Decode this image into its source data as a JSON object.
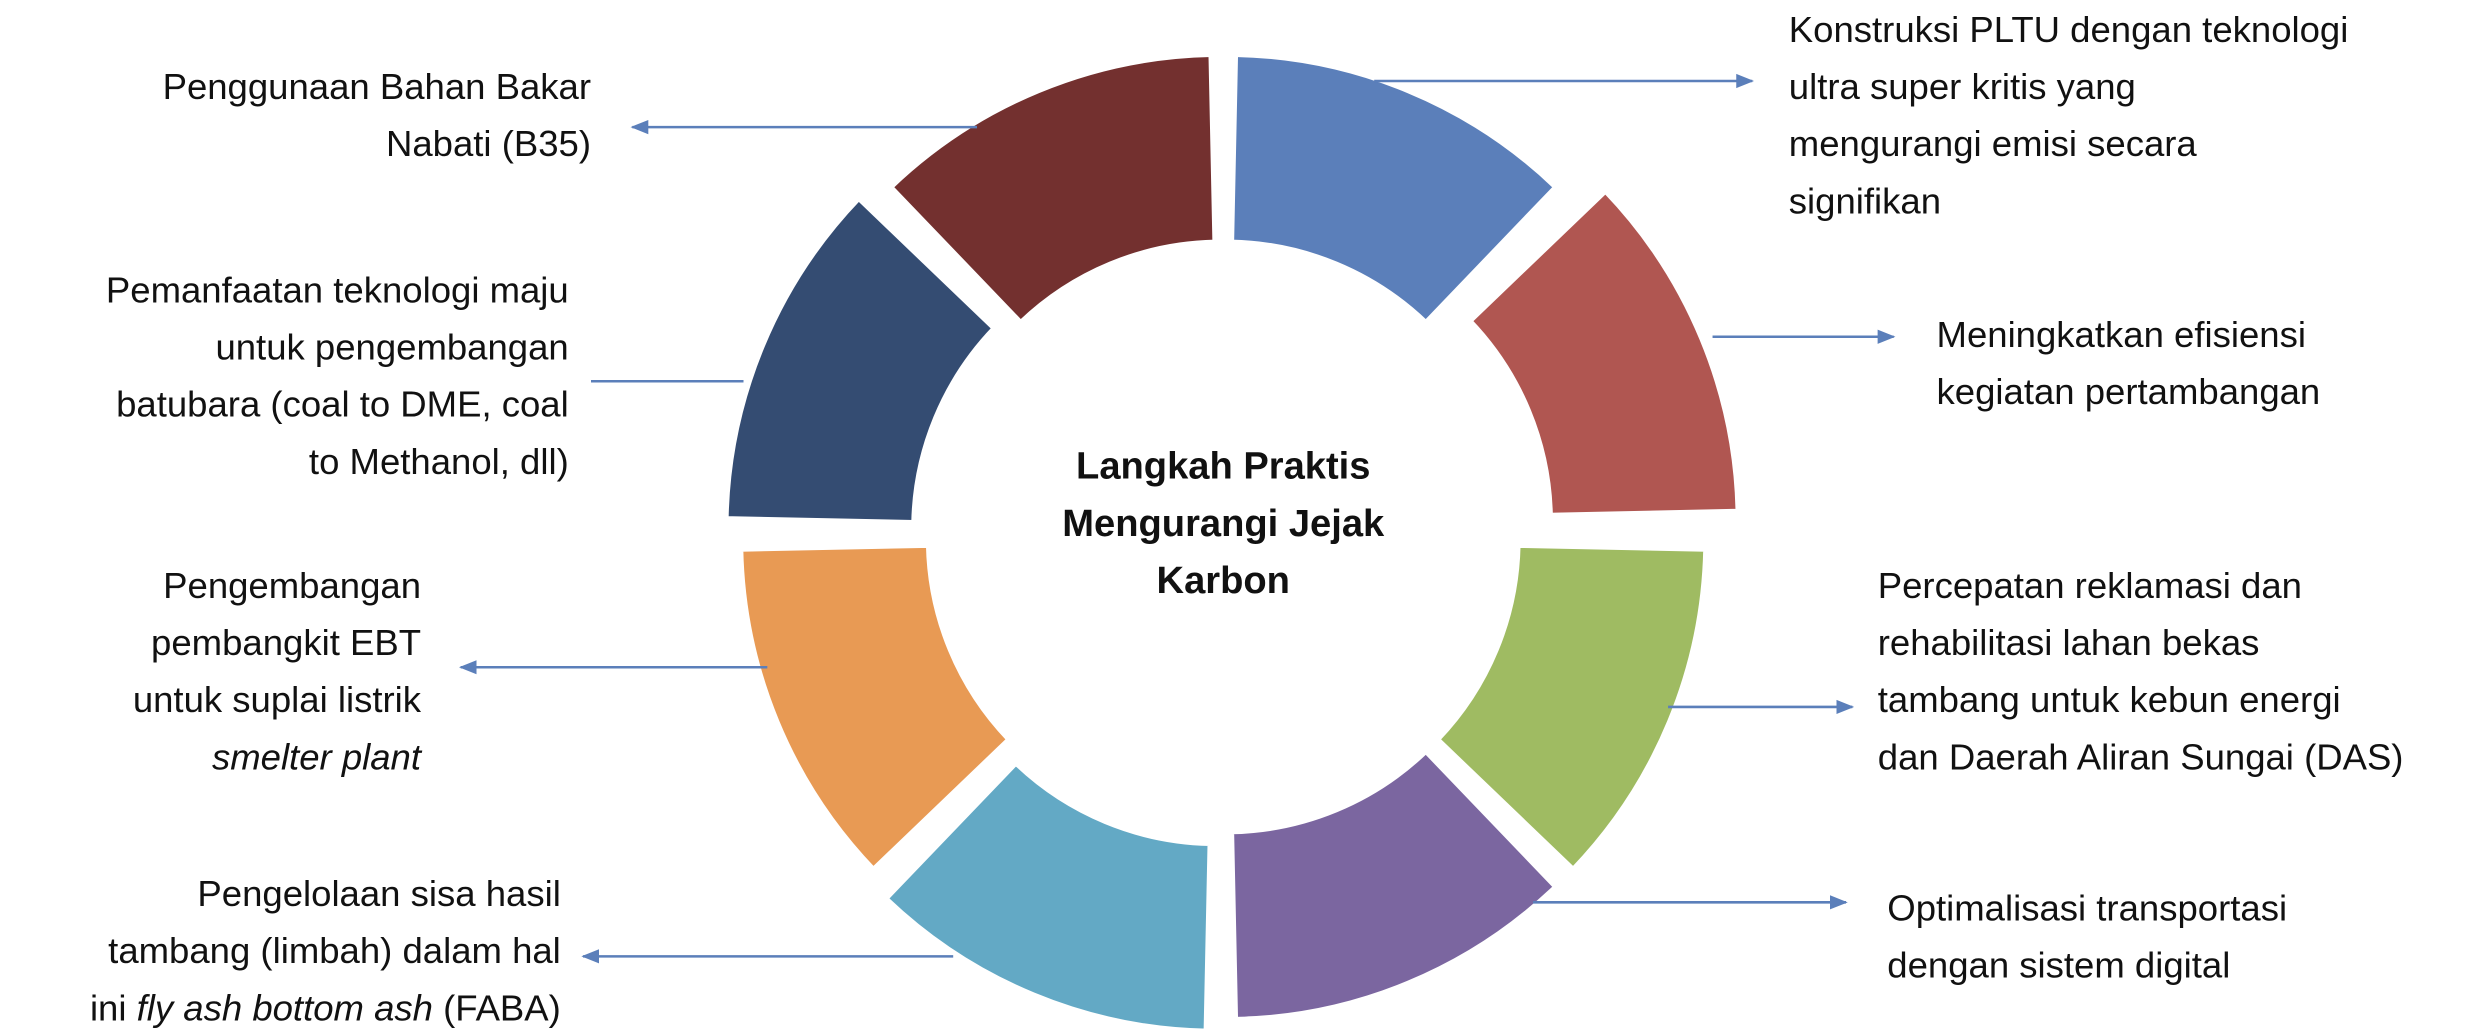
{
  "center": {
    "lines": [
      "Langkah Praktis",
      "Mengurangi Jejak",
      "Karbon"
    ]
  },
  "segments": [
    {
      "color": "#5b7fba"
    },
    {
      "color": "#b05651"
    },
    {
      "color": "#9fbb62"
    },
    {
      "color": "#7b66a0"
    },
    {
      "color": "#63a9c5"
    },
    {
      "color": "#e89a54"
    },
    {
      "color": "#344c72"
    },
    {
      "color": "#73302f"
    }
  ],
  "nodes": [
    {
      "lines": [
        [
          "Konstruksi PLTU dengan teknologi"
        ],
        [
          "ultra super kritis yang"
        ],
        [
          "mengurangi emisi secara"
        ],
        [
          "signifikan"
        ]
      ]
    },
    {
      "lines": [
        [
          "Meningkatkan efisiensi"
        ],
        [
          "kegiatan pertambangan"
        ]
      ]
    },
    {
      "lines": [
        [
          "Percepatan reklamasi dan"
        ],
        [
          "rehabilitasi lahan bekas"
        ],
        [
          "tambang untuk kebun energi"
        ],
        [
          "dan Daerah Aliran Sungai (DAS)"
        ]
      ]
    },
    {
      "lines": [
        [
          "Optimalisasi transportasi"
        ],
        [
          "dengan sistem digital"
        ]
      ]
    },
    {
      "lines": [
        [
          "Pengelolaan sisa hasil"
        ],
        [
          "tambang (limbah) dalam hal"
        ],
        [
          "ini ",
          {
            "text": "fly ash bottom ash",
            "italic": true
          },
          " (FABA)"
        ]
      ]
    },
    {
      "lines": [
        [
          "Pengembangan"
        ],
        [
          "pembangkit EBT"
        ],
        [
          "untuk suplai listrik"
        ],
        [
          {
            "text": "smelter plant",
            "italic": true
          }
        ]
      ]
    },
    {
      "lines": [
        [
          "Pemanfaatan teknologi maju"
        ],
        [
          "untuk pengembangan"
        ],
        [
          "batubara (coal to DME, coal"
        ],
        [
          "to Methanol, dll)"
        ]
      ]
    },
    {
      "lines": [
        [
          "Penggunaan Bahan Bakar"
        ],
        [
          "Nabati (B35)"
        ]
      ]
    }
  ]
}
